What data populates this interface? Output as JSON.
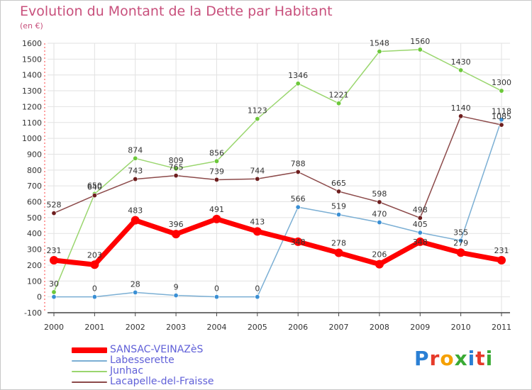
{
  "header": {
    "title": "Evolution du Montant de la Dette par Habitant",
    "unit": "(en €)"
  },
  "logo": {
    "letters": [
      "P",
      "r",
      "o",
      "x",
      "i",
      "t",
      "i"
    ],
    "colors": [
      "#2a7fd4",
      "#e63a2a",
      "#f5a000",
      "#3aaa35",
      "#2a7fd4",
      "#e63a2a",
      "#3aaa35"
    ]
  },
  "chart_data": {
    "type": "line",
    "title": "Evolution du Montant de la Dette par Habitant",
    "ylabel": "(en €)",
    "xlabel": "",
    "x": [
      "2000",
      "2001",
      "2002",
      "2003",
      "2004",
      "2005",
      "2006",
      "2007",
      "2008",
      "2009",
      "2010",
      "2011"
    ],
    "ylim": [
      -100,
      1600
    ],
    "yticks": [
      "-100",
      "0",
      "100",
      "200",
      "300",
      "400",
      "500",
      "600",
      "700",
      "800",
      "900",
      "1000",
      "1100",
      "1200",
      "1300",
      "1400",
      "1500",
      "1600"
    ],
    "grid": true,
    "legend": "bottom-left",
    "series": [
      {
        "name": "SANSAC-VEINAZèS",
        "color": "#ff0000",
        "point_color": "#ff0000",
        "emphasis": true,
        "values": [
          231,
          203,
          483,
          396,
          491,
          413,
          348,
          278,
          206,
          348,
          279,
          231
        ],
        "labels": [
          "231",
          "203",
          "483",
          "396",
          "491",
          "413",
          "",
          "278",
          "206",
          "",
          "279",
          "231"
        ]
      },
      {
        "name": "Labesserette",
        "color": "#7bafd4",
        "point_color": "#3a8fd4",
        "values": [
          0,
          0,
          28,
          9,
          0,
          0,
          566,
          519,
          470,
          405,
          355,
          1118
        ],
        "labels": [
          "",
          "0",
          "28",
          "9",
          "0",
          "0",
          "566",
          "519",
          "470",
          "405",
          "355",
          "1118"
        ]
      },
      {
        "name": "Junhac",
        "color": "#9ad66e",
        "point_color": "#6cc83a",
        "values": [
          30,
          650,
          874,
          809,
          856,
          1123,
          1346,
          1221,
          1548,
          1560,
          1430,
          1300
        ],
        "labels": [
          "30",
          "650",
          "874",
          "809",
          "856",
          "1123",
          "1346",
          "1221",
          "1548",
          "1560",
          "1430",
          "1300"
        ]
      },
      {
        "name": "Lacapelle-del-Fraisse",
        "color": "#8c4a4a",
        "point_color": "#6e1e1e",
        "values": [
          528,
          640,
          743,
          765,
          739,
          744,
          788,
          665,
          598,
          498,
          1140,
          1085
        ],
        "labels": [
          "528",
          "640",
          "743",
          "765",
          "739",
          "744",
          "788",
          "665",
          "598",
          "498",
          "1140",
          "1085"
        ]
      }
    ],
    "extra_labels": [
      {
        "x_index": 6,
        "value": 348,
        "text": "348"
      },
      {
        "x_index": 9,
        "value": 348,
        "text": "348"
      }
    ]
  }
}
